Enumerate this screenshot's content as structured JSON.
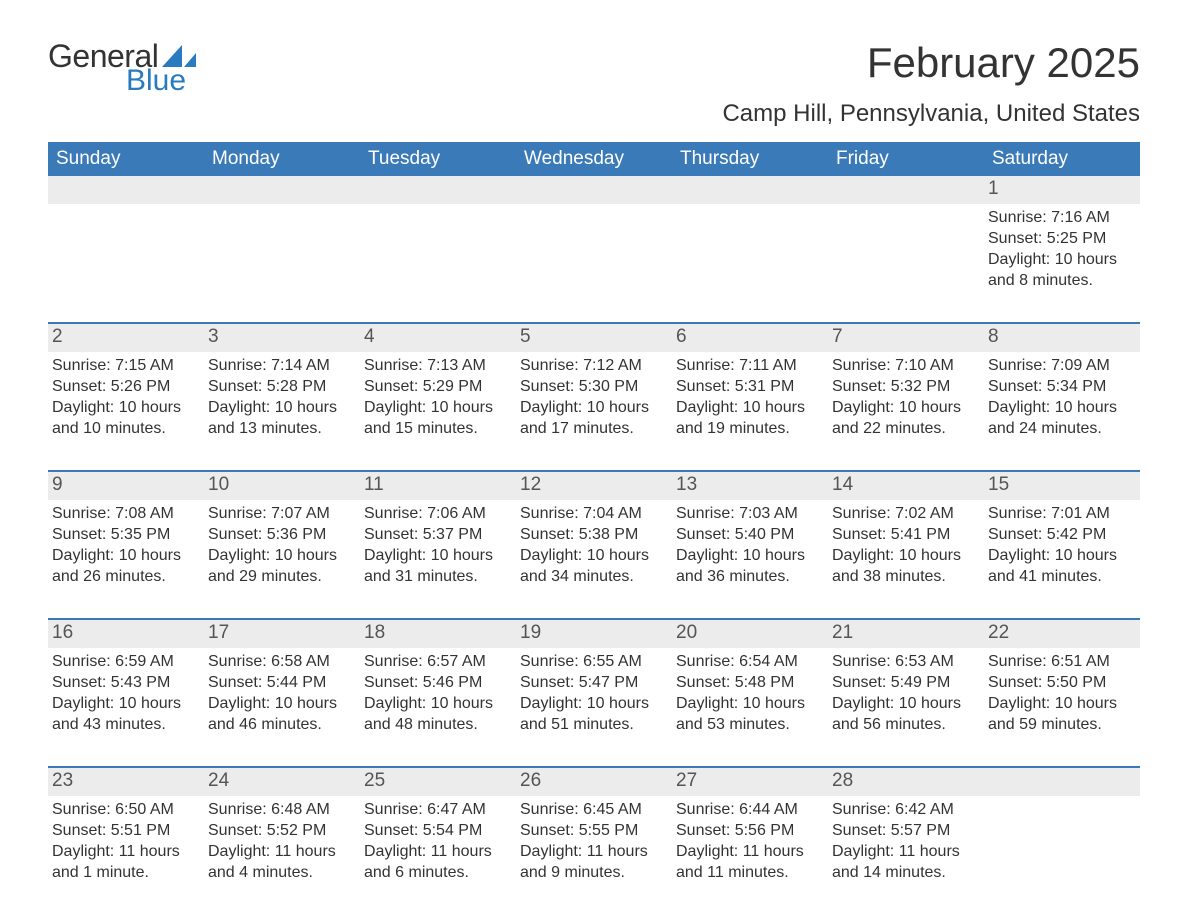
{
  "brand": {
    "word1": "General",
    "word2": "Blue",
    "accent_color": "#2a7abf"
  },
  "header": {
    "month_title": "February 2025",
    "location": "Camp Hill, Pennsylvania, United States"
  },
  "styling": {
    "header_bg": "#3a7ab8",
    "header_text": "#ffffff",
    "row_border": "#3a7ab8",
    "day_bar_bg": "#ececec",
    "body_text": "#333333",
    "page_bg": "#ffffff"
  },
  "days_of_week": [
    "Sunday",
    "Monday",
    "Tuesday",
    "Wednesday",
    "Thursday",
    "Friday",
    "Saturday"
  ],
  "labels": {
    "sunrise": "Sunrise:",
    "sunset": "Sunset:",
    "daylight": "Daylight:"
  },
  "weeks": [
    [
      {
        "empty": true
      },
      {
        "empty": true
      },
      {
        "empty": true
      },
      {
        "empty": true
      },
      {
        "empty": true
      },
      {
        "empty": true
      },
      {
        "day": "1",
        "sunrise": "7:16 AM",
        "sunset": "5:25 PM",
        "daylight": "10 hours and 8 minutes."
      }
    ],
    [
      {
        "day": "2",
        "sunrise": "7:15 AM",
        "sunset": "5:26 PM",
        "daylight": "10 hours and 10 minutes."
      },
      {
        "day": "3",
        "sunrise": "7:14 AM",
        "sunset": "5:28 PM",
        "daylight": "10 hours and 13 minutes."
      },
      {
        "day": "4",
        "sunrise": "7:13 AM",
        "sunset": "5:29 PM",
        "daylight": "10 hours and 15 minutes."
      },
      {
        "day": "5",
        "sunrise": "7:12 AM",
        "sunset": "5:30 PM",
        "daylight": "10 hours and 17 minutes."
      },
      {
        "day": "6",
        "sunrise": "7:11 AM",
        "sunset": "5:31 PM",
        "daylight": "10 hours and 19 minutes."
      },
      {
        "day": "7",
        "sunrise": "7:10 AM",
        "sunset": "5:32 PM",
        "daylight": "10 hours and 22 minutes."
      },
      {
        "day": "8",
        "sunrise": "7:09 AM",
        "sunset": "5:34 PM",
        "daylight": "10 hours and 24 minutes."
      }
    ],
    [
      {
        "day": "9",
        "sunrise": "7:08 AM",
        "sunset": "5:35 PM",
        "daylight": "10 hours and 26 minutes."
      },
      {
        "day": "10",
        "sunrise": "7:07 AM",
        "sunset": "5:36 PM",
        "daylight": "10 hours and 29 minutes."
      },
      {
        "day": "11",
        "sunrise": "7:06 AM",
        "sunset": "5:37 PM",
        "daylight": "10 hours and 31 minutes."
      },
      {
        "day": "12",
        "sunrise": "7:04 AM",
        "sunset": "5:38 PM",
        "daylight": "10 hours and 34 minutes."
      },
      {
        "day": "13",
        "sunrise": "7:03 AM",
        "sunset": "5:40 PM",
        "daylight": "10 hours and 36 minutes."
      },
      {
        "day": "14",
        "sunrise": "7:02 AM",
        "sunset": "5:41 PM",
        "daylight": "10 hours and 38 minutes."
      },
      {
        "day": "15",
        "sunrise": "7:01 AM",
        "sunset": "5:42 PM",
        "daylight": "10 hours and 41 minutes."
      }
    ],
    [
      {
        "day": "16",
        "sunrise": "6:59 AM",
        "sunset": "5:43 PM",
        "daylight": "10 hours and 43 minutes."
      },
      {
        "day": "17",
        "sunrise": "6:58 AM",
        "sunset": "5:44 PM",
        "daylight": "10 hours and 46 minutes."
      },
      {
        "day": "18",
        "sunrise": "6:57 AM",
        "sunset": "5:46 PM",
        "daylight": "10 hours and 48 minutes."
      },
      {
        "day": "19",
        "sunrise": "6:55 AM",
        "sunset": "5:47 PM",
        "daylight": "10 hours and 51 minutes."
      },
      {
        "day": "20",
        "sunrise": "6:54 AM",
        "sunset": "5:48 PM",
        "daylight": "10 hours and 53 minutes."
      },
      {
        "day": "21",
        "sunrise": "6:53 AM",
        "sunset": "5:49 PM",
        "daylight": "10 hours and 56 minutes."
      },
      {
        "day": "22",
        "sunrise": "6:51 AM",
        "sunset": "5:50 PM",
        "daylight": "10 hours and 59 minutes."
      }
    ],
    [
      {
        "day": "23",
        "sunrise": "6:50 AM",
        "sunset": "5:51 PM",
        "daylight": "11 hours and 1 minute."
      },
      {
        "day": "24",
        "sunrise": "6:48 AM",
        "sunset": "5:52 PM",
        "daylight": "11 hours and 4 minutes."
      },
      {
        "day": "25",
        "sunrise": "6:47 AM",
        "sunset": "5:54 PM",
        "daylight": "11 hours and 6 minutes."
      },
      {
        "day": "26",
        "sunrise": "6:45 AM",
        "sunset": "5:55 PM",
        "daylight": "11 hours and 9 minutes."
      },
      {
        "day": "27",
        "sunrise": "6:44 AM",
        "sunset": "5:56 PM",
        "daylight": "11 hours and 11 minutes."
      },
      {
        "day": "28",
        "sunrise": "6:42 AM",
        "sunset": "5:57 PM",
        "daylight": "11 hours and 14 minutes."
      },
      {
        "empty": true
      }
    ]
  ]
}
